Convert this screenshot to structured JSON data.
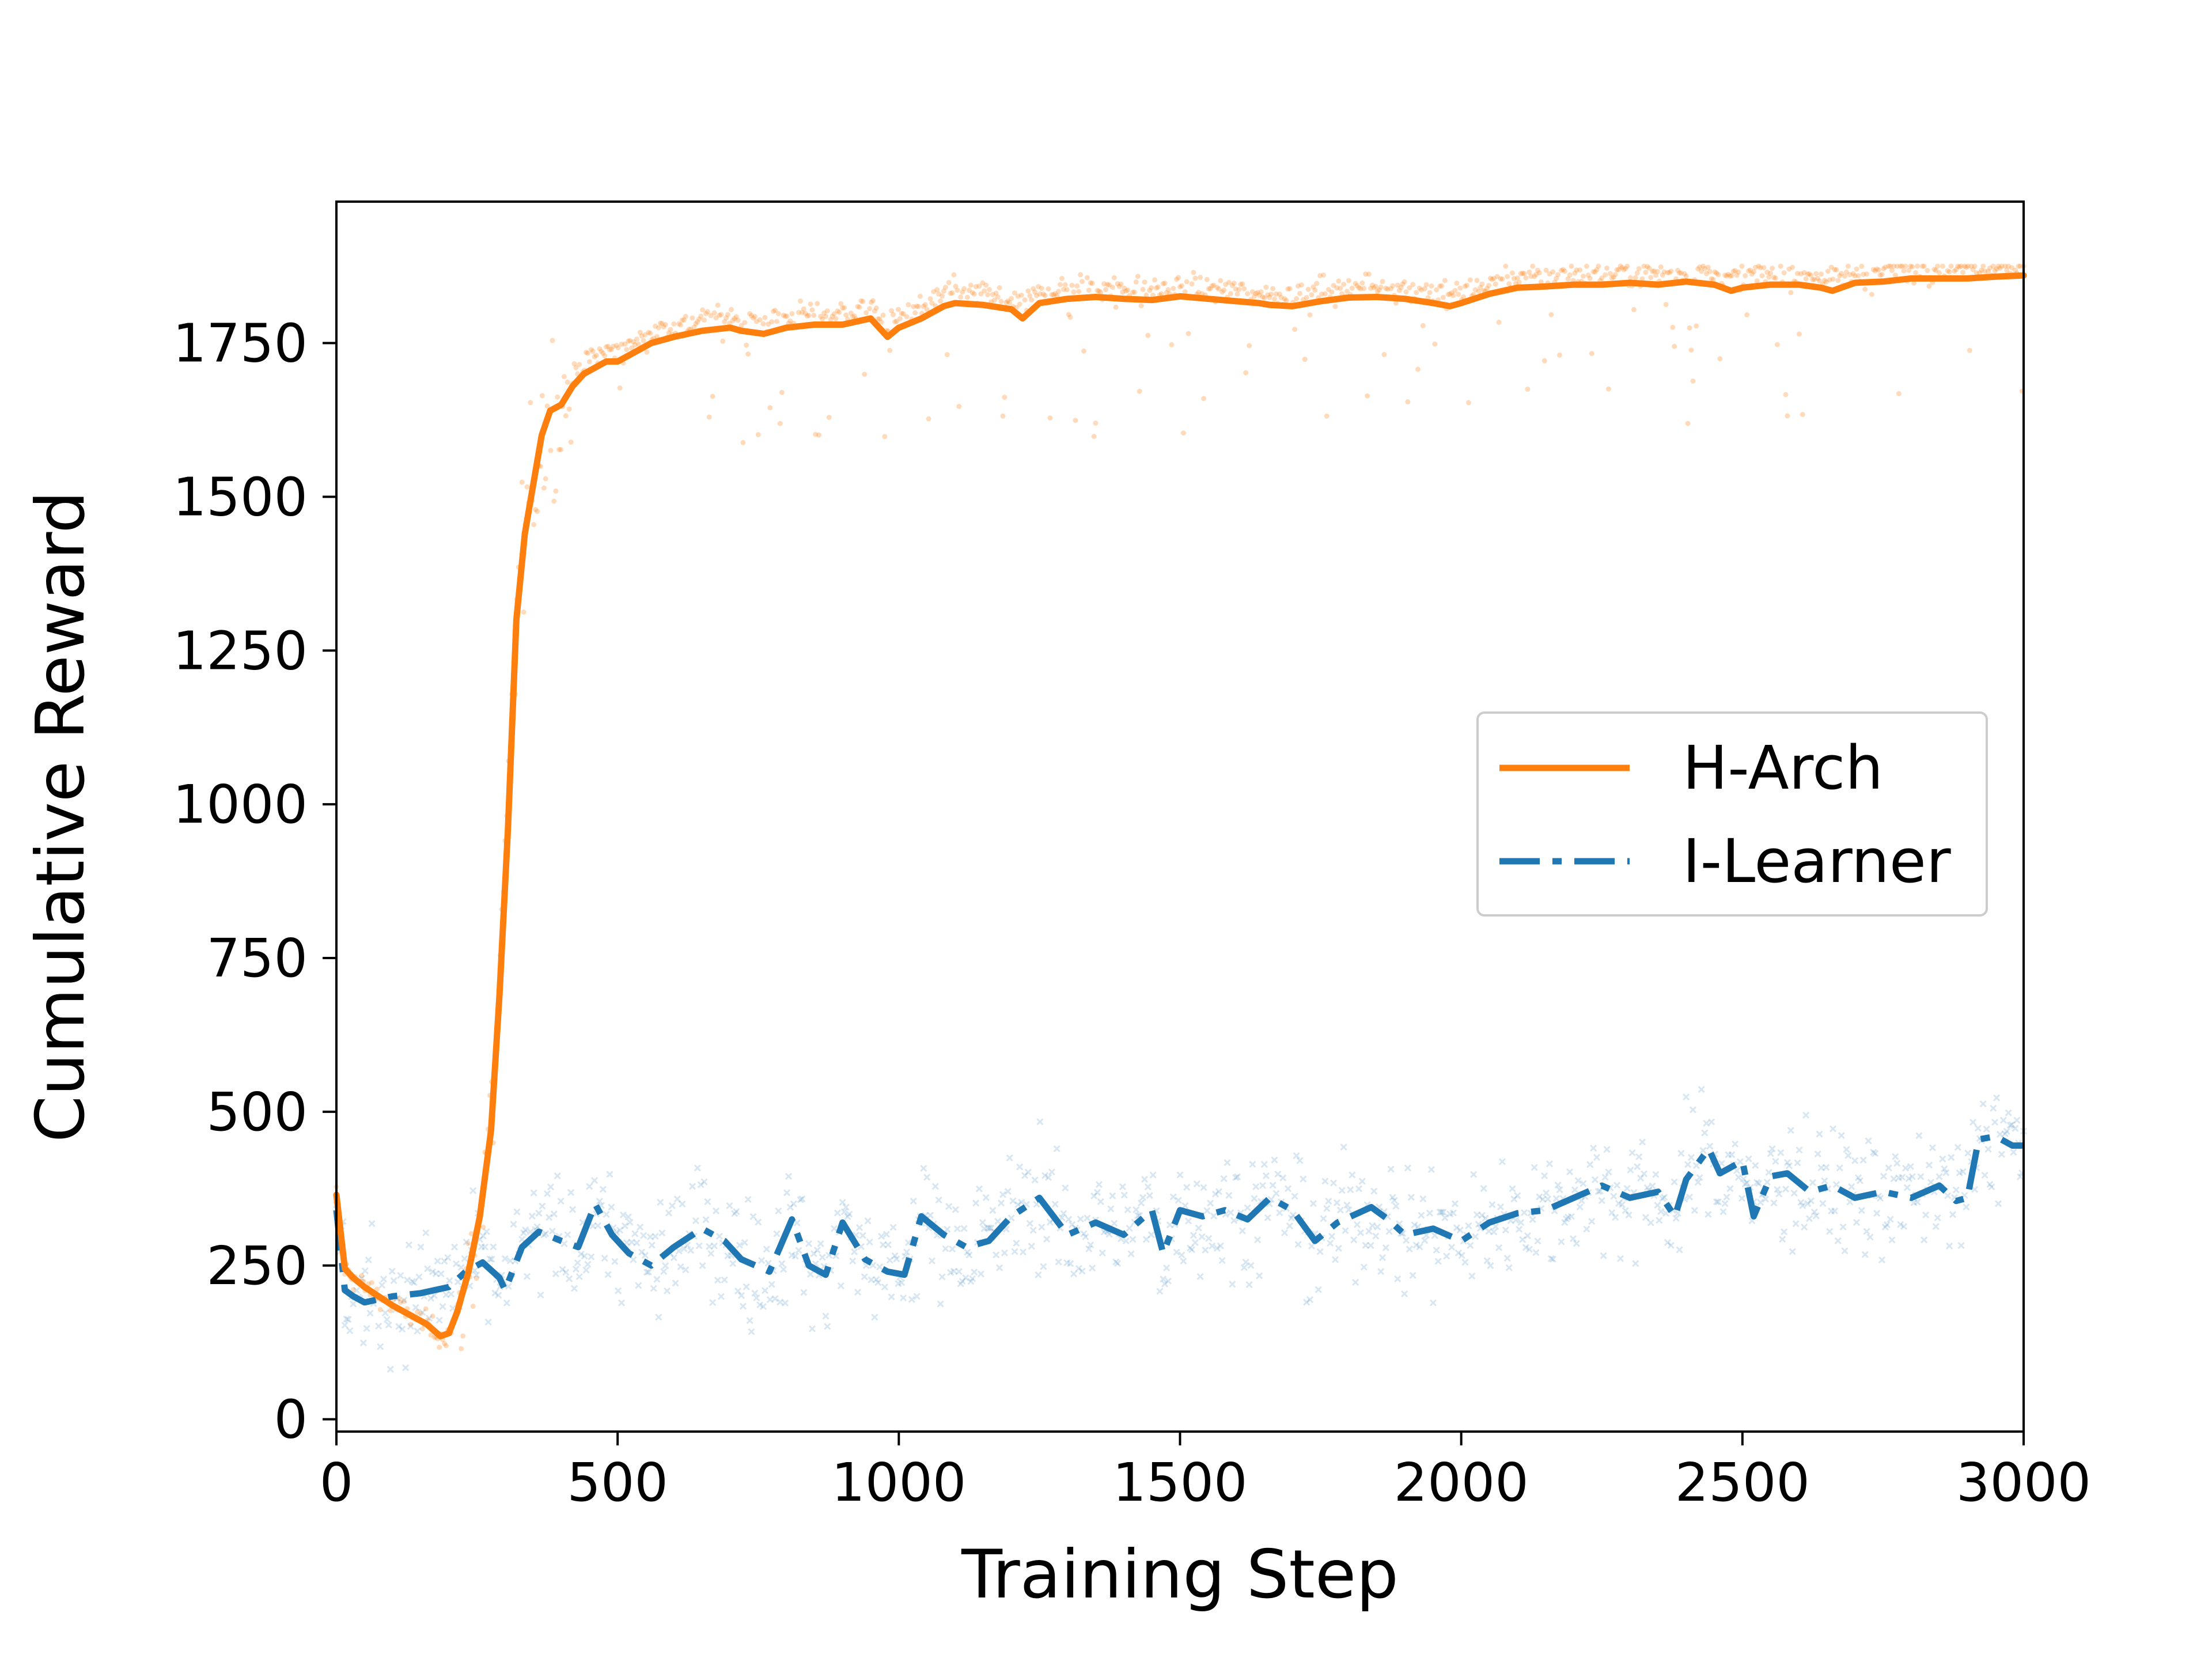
{
  "chart_data": {
    "type": "line",
    "title": "",
    "xlabel": "Training Step",
    "ylabel": "Cumulative Reward",
    "xlim": [
      0,
      3000
    ],
    "ylim": [
      -20,
      1980
    ],
    "xticks": [
      0,
      500,
      1000,
      1500,
      2000,
      2500,
      3000
    ],
    "yticks": [
      0,
      250,
      500,
      750,
      1000,
      1250,
      1500,
      1750
    ],
    "grid": false,
    "legend_position": "center-right",
    "series": [
      {
        "name": "H-Arch",
        "color": "#ff7f0e",
        "line_style": "solid",
        "raw_markers": "dots",
        "x": [
          0,
          15,
          30,
          50,
          75,
          100,
          130,
          160,
          185,
          200,
          215,
          235,
          255,
          275,
          290,
          305,
          320,
          335,
          350,
          365,
          380,
          400,
          420,
          440,
          460,
          480,
          500,
          520,
          560,
          600,
          650,
          700,
          720,
          760,
          800,
          850,
          900,
          950,
          980,
          1000,
          1040,
          1080,
          1100,
          1150,
          1200,
          1220,
          1250,
          1300,
          1350,
          1400,
          1450,
          1500,
          1550,
          1600,
          1640,
          1660,
          1700,
          1750,
          1800,
          1850,
          1900,
          1950,
          1980,
          2000,
          2050,
          2100,
          2150,
          2200,
          2250,
          2300,
          2350,
          2400,
          2450,
          2480,
          2500,
          2550,
          2600,
          2640,
          2660,
          2700,
          2750,
          2800,
          2850,
          2900,
          2950,
          3000
        ],
        "y": [
          365,
          245,
          230,
          215,
          200,
          185,
          170,
          155,
          135,
          140,
          175,
          240,
          330,
          470,
          690,
          960,
          1300,
          1440,
          1520,
          1600,
          1640,
          1650,
          1680,
          1700,
          1710,
          1720,
          1720,
          1730,
          1750,
          1760,
          1770,
          1775,
          1770,
          1765,
          1775,
          1780,
          1780,
          1790,
          1760,
          1775,
          1790,
          1810,
          1815,
          1812,
          1805,
          1790,
          1815,
          1822,
          1825,
          1822,
          1820,
          1826,
          1822,
          1818,
          1815,
          1812,
          1810,
          1818,
          1824,
          1825,
          1822,
          1815,
          1810,
          1815,
          1830,
          1840,
          1842,
          1845,
          1845,
          1848,
          1845,
          1850,
          1845,
          1835,
          1840,
          1845,
          1845,
          1840,
          1835,
          1848,
          1850,
          1855,
          1855,
          1855,
          1858,
          1860
        ]
      },
      {
        "name": "I-Learner",
        "color": "#1f77b4",
        "line_style": "dashdot",
        "raw_markers": "x",
        "x": [
          0,
          15,
          30,
          50,
          75,
          100,
          150,
          200,
          230,
          260,
          290,
          300,
          330,
          360,
          400,
          430,
          460,
          490,
          520,
          560,
          600,
          650,
          690,
          720,
          770,
          810,
          840,
          870,
          900,
          940,
          980,
          1010,
          1040,
          1080,
          1120,
          1160,
          1200,
          1250,
          1300,
          1350,
          1400,
          1450,
          1470,
          1500,
          1540,
          1580,
          1620,
          1660,
          1700,
          1740,
          1780,
          1840,
          1870,
          1900,
          1950,
          2000,
          2050,
          2100,
          2150,
          2200,
          2250,
          2300,
          2350,
          2380,
          2400,
          2440,
          2460,
          2500,
          2520,
          2550,
          2580,
          2620,
          2660,
          2700,
          2750,
          2800,
          2850,
          2880,
          2900,
          2920,
          2950,
          2980,
          3000
        ],
        "y": [
          340,
          210,
          200,
          190,
          195,
          200,
          205,
          215,
          240,
          255,
          230,
          210,
          280,
          305,
          290,
          280,
          350,
          300,
          270,
          250,
          280,
          310,
          290,
          260,
          240,
          325,
          250,
          235,
          320,
          260,
          240,
          235,
          330,
          300,
          280,
          290,
          330,
          360,
          300,
          320,
          300,
          340,
          270,
          340,
          330,
          340,
          325,
          360,
          340,
          290,
          320,
          345,
          325,
          300,
          310,
          290,
          320,
          335,
          340,
          360,
          380,
          360,
          370,
          330,
          390,
          440,
          400,
          420,
          330,
          395,
          400,
          370,
          380,
          360,
          370,
          360,
          380,
          355,
          360,
          455,
          460,
          445,
          445
        ]
      }
    ]
  }
}
